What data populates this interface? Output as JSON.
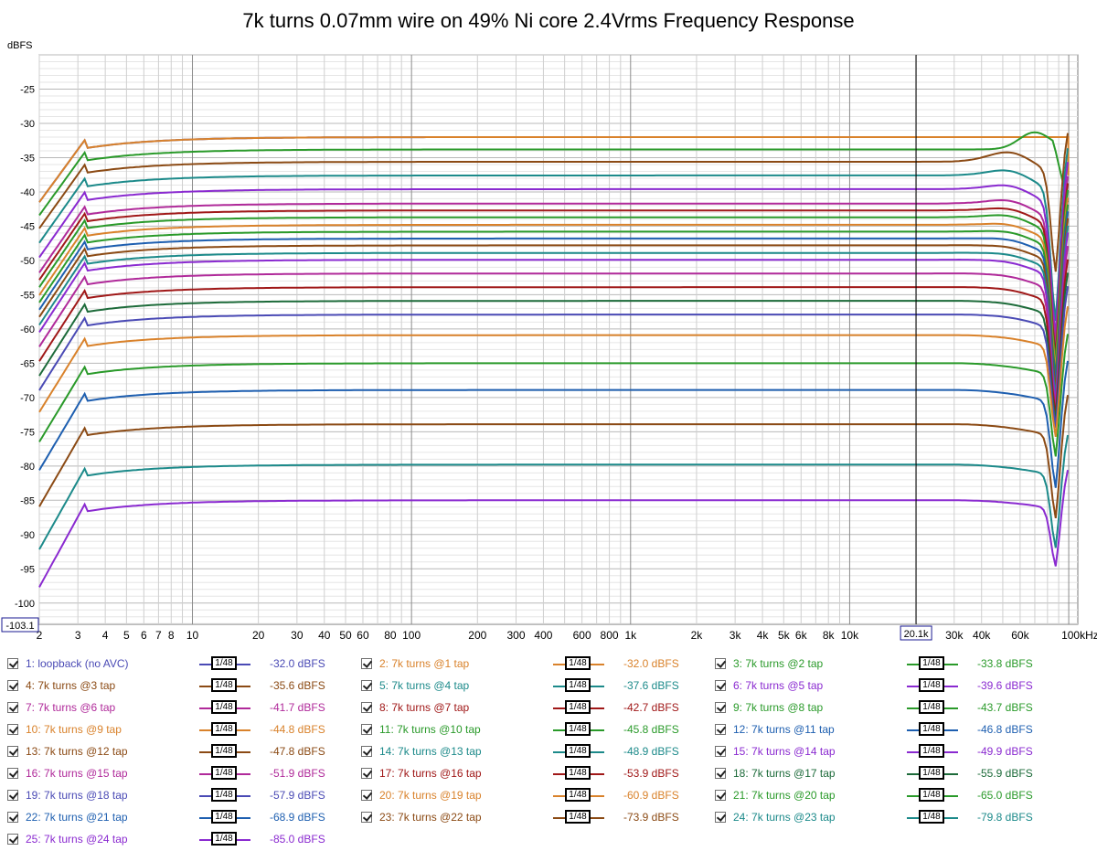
{
  "chart_data": {
    "type": "line",
    "title": "7k turns 0.07mm wire on 49% Ni core 2.4Vrms Frequency Response",
    "ylabel": "dBFS",
    "xlabel": "",
    "xscale": "log",
    "xlim": [
      2,
      110000
    ],
    "ylim": [
      -103.1,
      -20
    ],
    "ylim_readout": "-103.1",
    "x_cursor_label": "20.1k",
    "x_ticks": [
      {
        "v": 2,
        "t": "2"
      },
      {
        "v": 3,
        "t": "3"
      },
      {
        "v": 4,
        "t": "4"
      },
      {
        "v": 5,
        "t": "5"
      },
      {
        "v": 6,
        "t": "6"
      },
      {
        "v": 7,
        "t": "7"
      },
      {
        "v": 8,
        "t": "8"
      },
      {
        "v": 10,
        "t": "10"
      },
      {
        "v": 20,
        "t": "20"
      },
      {
        "v": 30,
        "t": "30"
      },
      {
        "v": 40,
        "t": "40"
      },
      {
        "v": 50,
        "t": "50"
      },
      {
        "v": 60,
        "t": "60"
      },
      {
        "v": 80,
        "t": "80"
      },
      {
        "v": 100,
        "t": "100"
      },
      {
        "v": 200,
        "t": "200"
      },
      {
        "v": 300,
        "t": "300"
      },
      {
        "v": 400,
        "t": "400"
      },
      {
        "v": 600,
        "t": "600"
      },
      {
        "v": 800,
        "t": "800"
      },
      {
        "v": 1000,
        "t": "1k"
      },
      {
        "v": 2000,
        "t": "2k"
      },
      {
        "v": 3000,
        "t": "3k"
      },
      {
        "v": 4000,
        "t": "4k"
      },
      {
        "v": 5000,
        "t": "5k"
      },
      {
        "v": 6000,
        "t": "6k"
      },
      {
        "v": 8000,
        "t": "8k"
      },
      {
        "v": 10000,
        "t": "10k"
      },
      {
        "v": 30000,
        "t": "30k"
      },
      {
        "v": 40000,
        "t": "40k"
      },
      {
        "v": 60000,
        "t": "60k"
      },
      {
        "v": 100000,
        "t": "100kHz"
      }
    ],
    "y_ticks": [
      -25,
      -30,
      -35,
      -40,
      -45,
      -50,
      -55,
      -60,
      -65,
      -70,
      -75,
      -80,
      -85,
      -90,
      -95,
      -100
    ],
    "grid": true,
    "series": [
      {
        "name": "1: loopback (no AVC)",
        "level": -32.0,
        "level_label": "-32.0 dBFS",
        "color": "#4a4ab5",
        "dip": 0,
        "peak": 0
      },
      {
        "name": "2: 7k turns @1 tap",
        "level": -32.0,
        "level_label": "-32.0 dBFS",
        "color": "#d9822b",
        "dip": 0,
        "peak": 0,
        "edge": -37.6
      },
      {
        "name": "3: 7k turns @2 tap",
        "level": -33.8,
        "level_label": "-33.8 dBFS",
        "color": "#2a9a2a",
        "dip": 0,
        "peak": 2.5
      },
      {
        "name": "4: 7k turns @3 tap",
        "level": -35.6,
        "level_label": "-35.6 dBFS",
        "color": "#8b4a14",
        "dip": -50.0,
        "peak": 2.0
      },
      {
        "name": "5: 7k turns @4 tap",
        "level": -37.6,
        "level_label": "-37.6 dBFS",
        "color": "#1c8a8a",
        "dip": -56.5,
        "peak": 1.5
      },
      {
        "name": "6: 7k turns @5 tap",
        "level": -39.6,
        "level_label": "-39.6 dBFS",
        "color": "#8a2ad0",
        "dip": -58.5,
        "peak": 1.3
      },
      {
        "name": "7: 7k turns @6 tap",
        "level": -41.7,
        "level_label": "-41.7 dBFS",
        "color": "#b02a9a",
        "dip": -60.0,
        "peak": 1.2
      },
      {
        "name": "8: 7k turns @7 tap",
        "level": -42.7,
        "level_label": "-42.7 dBFS",
        "color": "#a01818",
        "dip": -61.5,
        "peak": 1.0
      },
      {
        "name": "9: 7k turns @8 tap",
        "level": -43.7,
        "level_label": "-43.7 dBFS",
        "color": "#2a9a2a",
        "dip": -62.5,
        "peak": 1.0
      },
      {
        "name": "10: 7k turns @9 tap",
        "level": -44.8,
        "level_label": "-44.8 dBFS",
        "color": "#d9822b",
        "dip": -63.5,
        "peak": 0.8
      },
      {
        "name": "11: 7k turns @10 tap",
        "level": -45.8,
        "level_label": "-45.8 dBFS",
        "color": "#2a9a2a",
        "dip": -64.5,
        "peak": 0.7
      },
      {
        "name": "12: 7k turns @11 tap",
        "level": -46.8,
        "level_label": "-46.8 dBFS",
        "color": "#1e5fb0",
        "dip": -65.5,
        "peak": 0.6
      },
      {
        "name": "13: 7k turns @12 tap",
        "level": -47.8,
        "level_label": "-47.8 dBFS",
        "color": "#8b4a14",
        "dip": -66.5,
        "peak": 0.5
      },
      {
        "name": "14: 7k turns @13 tap",
        "level": -48.9,
        "level_label": "-48.9 dBFS",
        "color": "#1c8a8a",
        "dip": -67.5,
        "peak": 0.5
      },
      {
        "name": "15: 7k turns @14 tap",
        "level": -49.9,
        "level_label": "-49.9 dBFS",
        "color": "#8a2ad0",
        "dip": -68.5,
        "peak": 0.4
      },
      {
        "name": "16: 7k turns @15 tap",
        "level": -51.9,
        "level_label": "-51.9 dBFS",
        "color": "#b02a9a",
        "dip": -69.5,
        "peak": 0.3
      },
      {
        "name": "17: 7k turns @16 tap",
        "level": -53.9,
        "level_label": "-53.9 dBFS",
        "color": "#a01818",
        "dip": -70.5,
        "peak": 0.3
      },
      {
        "name": "18: 7k turns @17 tap",
        "level": -55.9,
        "level_label": "-55.9 dBFS",
        "color": "#1d6b3a",
        "dip": -71.5,
        "peak": 0.2
      },
      {
        "name": "19: 7k turns @18 tap",
        "level": -57.9,
        "level_label": "-57.9 dBFS",
        "color": "#4a4ab5",
        "dip": -72.5,
        "peak": 0.2
      },
      {
        "name": "20: 7k turns @19 tap",
        "level": -60.9,
        "level_label": "-60.9 dBFS",
        "color": "#d9822b",
        "dip": -74.0,
        "peak": 0.1
      },
      {
        "name": "21: 7k turns @20 tap",
        "level": -65.0,
        "level_label": "-65.0 dBFS",
        "color": "#2a9a2a",
        "dip": -77.0,
        "peak": 0
      },
      {
        "name": "22: 7k turns @21 tap",
        "level": -68.9,
        "level_label": "-68.9 dBFS",
        "color": "#1e5fb0",
        "dip": -81.5,
        "peak": 0
      },
      {
        "name": "23: 7k turns @22 tap",
        "level": -73.9,
        "level_label": "-73.9 dBFS",
        "color": "#8b4a14",
        "dip": -86.0,
        "peak": 0
      },
      {
        "name": "24: 7k turns @23 tap",
        "level": -79.8,
        "level_label": "-79.8 dBFS",
        "color": "#1c8a8a",
        "dip": -90.5,
        "peak": 0
      },
      {
        "name": "25: 7k turns @24 tap",
        "level": -85.0,
        "level_label": "-85.0 dBFS",
        "color": "#8a2ad0",
        "dip": -93.5,
        "peak": 0
      }
    ],
    "smoothing_label": "1/48"
  }
}
